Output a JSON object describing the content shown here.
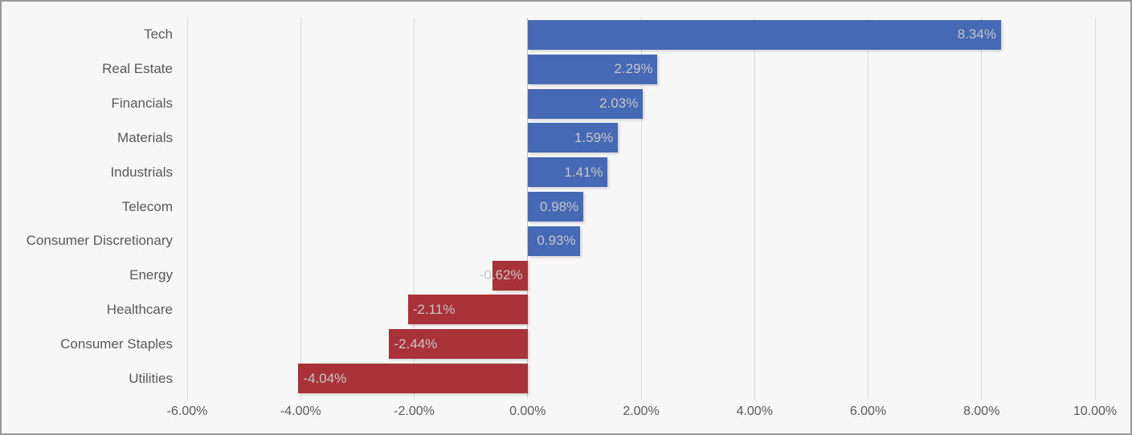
{
  "chart_data": {
    "type": "bar",
    "orientation": "horizontal",
    "title": "",
    "xlabel": "",
    "ylabel": "",
    "categories": [
      "Tech",
      "Real Estate",
      "Financials",
      "Materials",
      "Industrials",
      "Telecom",
      "Consumer Discretionary",
      "Energy",
      "Healthcare",
      "Consumer Staples",
      "Utilities"
    ],
    "values": [
      8.34,
      2.29,
      2.03,
      1.59,
      1.41,
      0.98,
      0.93,
      -0.62,
      -2.11,
      -2.44,
      -4.04
    ],
    "labels": [
      "8.34%",
      "2.29%",
      "2.03%",
      "1.59%",
      "1.41%",
      "0.98%",
      "0.93%",
      "-0.62%",
      "-2.11%",
      "-2.44%",
      "-4.04%"
    ],
    "xlim": [
      -6,
      10
    ],
    "x_tick_values": [
      -6,
      -4,
      -2,
      0,
      2,
      4,
      6,
      8,
      10
    ],
    "x_ticks": [
      "-6.00%",
      "-4.00%",
      "-2.00%",
      "0.00%",
      "2.00%",
      "4.00%",
      "6.00%",
      "8.00%",
      "10.00%"
    ],
    "grid": "vertical-gridlines-on",
    "legend": "none",
    "data_label_position": "inside-end",
    "colors": {
      "positive_bar": "#4569b5",
      "negative_bar": "#a93238",
      "data_label": "#c6c6c6",
      "axis_text": "#595959",
      "gridline": "#d9d9d9",
      "zero_line": "#c3c3c3",
      "background": "#f7f7f7",
      "border": "#999999"
    }
  }
}
